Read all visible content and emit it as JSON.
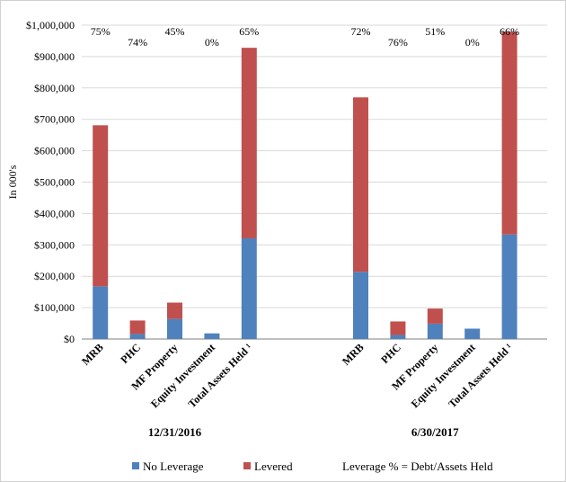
{
  "chart_data": {
    "type": "bar",
    "stacked": true,
    "ylabel": "In 000's",
    "ylim": [
      0,
      1000000
    ],
    "yticks": [
      0,
      100000,
      200000,
      300000,
      400000,
      500000,
      600000,
      700000,
      800000,
      900000,
      1000000
    ],
    "ytick_labels": [
      "$0",
      "$100,000",
      "$200,000",
      "$300,000",
      "$400,000",
      "$500,000",
      "$600,000",
      "$700,000",
      "$800,000",
      "$900,000",
      "$1,000,000"
    ],
    "grid": true,
    "groups": [
      {
        "label": "12/31/2016",
        "categories": [
          "MRB",
          "PHC",
          "MF Property",
          "Equity Investment",
          "Total Assets Held ¹"
        ],
        "series": [
          {
            "name": "No Leverage",
            "values": [
              168000,
              16000,
              64000,
              18000,
              321000
            ]
          },
          {
            "name": "Levered",
            "values": [
              513000,
              43000,
              52000,
              0,
              607000
            ]
          }
        ],
        "percent_labels": [
          "75%",
          "74%",
          "45%",
          "0%",
          "65%"
        ]
      },
      {
        "label": "6/30/2017",
        "categories": [
          "MRB",
          "PHC",
          "MF Property",
          "Equity Investment",
          "Total Assets Held ¹"
        ],
        "series": [
          {
            "name": "No Leverage",
            "values": [
              214000,
              13000,
              49000,
              33000,
              333000
            ]
          },
          {
            "name": "Levered",
            "values": [
              556000,
              43000,
              48000,
              0,
              646000
            ]
          }
        ],
        "percent_labels": [
          "72%",
          "76%",
          "51%",
          "0%",
          "66%"
        ]
      }
    ],
    "legend": {
      "position": "bottom",
      "items": [
        {
          "name": "No Leverage",
          "color": "#4f81bd"
        },
        {
          "name": "Levered",
          "color": "#c0504d"
        }
      ],
      "note": "Leverage % = Debt/Assets Held"
    }
  }
}
